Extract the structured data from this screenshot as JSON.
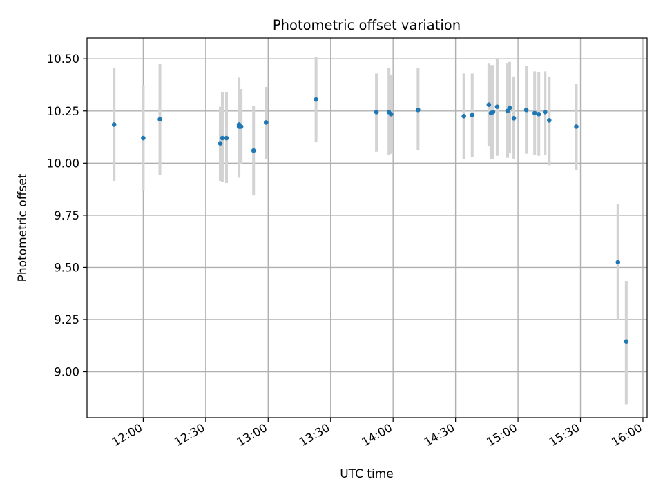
{
  "chart_data": {
    "type": "scatter",
    "title": "Photometric offset variation",
    "xlabel": "UTC time",
    "ylabel": "Photometric offset",
    "grid": true,
    "x_ticks": [
      "12:00",
      "12:30",
      "13:00",
      "13:30",
      "14:00",
      "14:30",
      "15:00",
      "15:30",
      "16:00"
    ],
    "y_ticks": [
      "9.00",
      "9.25",
      "9.50",
      "9.75",
      "10.00",
      "10.25",
      "10.50"
    ],
    "xlim": [
      "11:33",
      "16:02"
    ],
    "ylim": [
      8.78,
      10.6
    ],
    "colors": {
      "points": "#1f77b4",
      "errorbars": "#d3d3d3",
      "grid": "#b0b0b0"
    },
    "series": [
      {
        "points": [
          {
            "x": "11:46",
            "y": 10.185,
            "lo": 9.915,
            "hi": 10.455
          },
          {
            "x": "12:00",
            "y": 10.12,
            "lo": 9.87,
            "hi": 10.375
          },
          {
            "x": "12:08",
            "y": 10.21,
            "lo": 9.945,
            "hi": 10.475
          },
          {
            "x": "12:37",
            "y": 10.095,
            "lo": 9.915,
            "hi": 10.27
          },
          {
            "x": "12:38",
            "y": 10.12,
            "lo": 9.91,
            "hi": 10.34
          },
          {
            "x": "12:40",
            "y": 10.12,
            "lo": 9.905,
            "hi": 10.34
          },
          {
            "x": "12:46",
            "y": 10.185,
            "lo": 9.93,
            "hi": 10.41
          },
          {
            "x": "12:46",
            "y": 10.175,
            "lo": 9.995,
            "hi": 10.35
          },
          {
            "x": "12:47",
            "y": 10.175,
            "lo": 9.995,
            "hi": 10.355
          },
          {
            "x": "12:53",
            "y": 10.06,
            "lo": 9.845,
            "hi": 10.275
          },
          {
            "x": "12:59",
            "y": 10.195,
            "lo": 10.02,
            "hi": 10.365
          },
          {
            "x": "13:23",
            "y": 10.305,
            "lo": 10.1,
            "hi": 10.51
          },
          {
            "x": "13:52",
            "y": 10.245,
            "lo": 10.055,
            "hi": 10.43
          },
          {
            "x": "13:58",
            "y": 10.245,
            "lo": 10.04,
            "hi": 10.455
          },
          {
            "x": "13:59",
            "y": 10.235,
            "lo": 10.045,
            "hi": 10.425
          },
          {
            "x": "14:12",
            "y": 10.255,
            "lo": 10.06,
            "hi": 10.455
          },
          {
            "x": "14:34",
            "y": 10.225,
            "lo": 10.02,
            "hi": 10.43
          },
          {
            "x": "14:38",
            "y": 10.23,
            "lo": 10.03,
            "hi": 10.43
          },
          {
            "x": "14:46",
            "y": 10.28,
            "lo": 10.08,
            "hi": 10.48
          },
          {
            "x": "14:47",
            "y": 10.24,
            "lo": 10.02,
            "hi": 10.47
          },
          {
            "x": "14:48",
            "y": 10.245,
            "lo": 10.02,
            "hi": 10.47
          },
          {
            "x": "14:50",
            "y": 10.27,
            "lo": 10.035,
            "hi": 10.5
          },
          {
            "x": "14:55",
            "y": 10.25,
            "lo": 10.025,
            "hi": 10.48
          },
          {
            "x": "14:56",
            "y": 10.265,
            "lo": 10.05,
            "hi": 10.485
          },
          {
            "x": "14:58",
            "y": 10.215,
            "lo": 10.02,
            "hi": 10.415
          },
          {
            "x": "15:04",
            "y": 10.255,
            "lo": 10.045,
            "hi": 10.465
          },
          {
            "x": "15:08",
            "y": 10.24,
            "lo": 10.04,
            "hi": 10.44
          },
          {
            "x": "15:10",
            "y": 10.235,
            "lo": 10.035,
            "hi": 10.435
          },
          {
            "x": "15:13",
            "y": 10.245,
            "lo": 10.04,
            "hi": 10.44
          },
          {
            "x": "15:15",
            "y": 10.205,
            "lo": 9.99,
            "hi": 10.415
          },
          {
            "x": "15:28",
            "y": 10.175,
            "lo": 9.965,
            "hi": 10.38
          },
          {
            "x": "15:48",
            "y": 9.525,
            "lo": 9.25,
            "hi": 9.805
          },
          {
            "x": "15:52",
            "y": 9.145,
            "lo": 8.845,
            "hi": 9.435
          }
        ]
      }
    ]
  }
}
